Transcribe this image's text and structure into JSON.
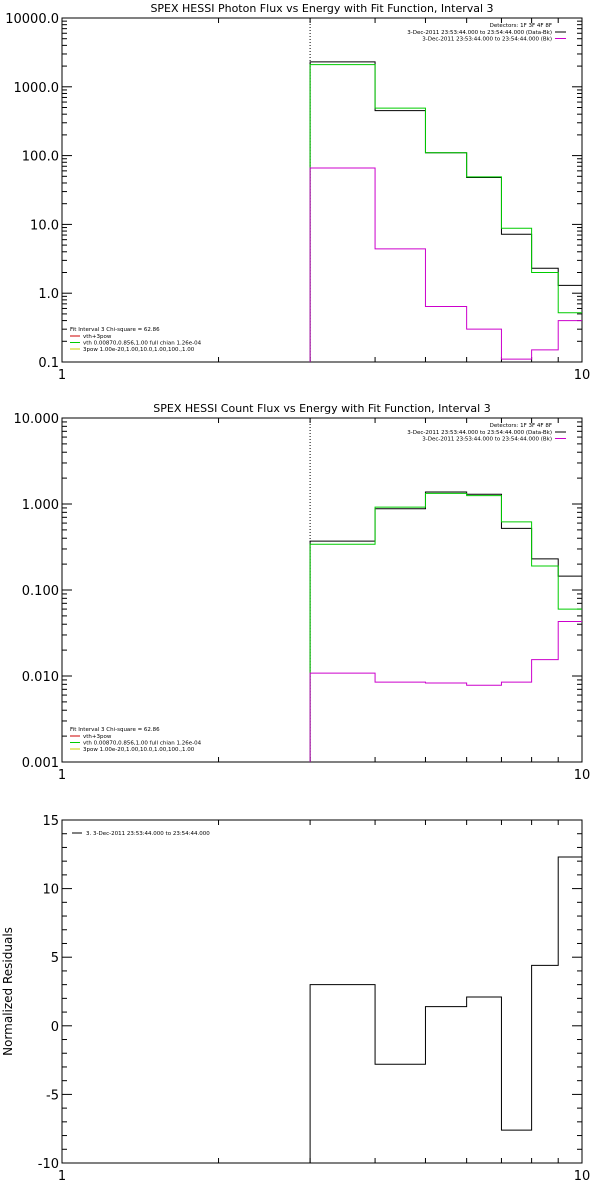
{
  "chart_data": [
    {
      "type": "line",
      "title": "SPEX HESSI Photon Flux vs Energy with Fit Function, Interval 3",
      "xlim": [
        1,
        10
      ],
      "x_scale": "log",
      "ylim": [
        0.1,
        10000
      ],
      "y_scale": "log",
      "x_tick_labels": [
        "1",
        "10"
      ],
      "y_tick_labels": [
        "0.1",
        "1.0",
        "10.0",
        "100.0",
        "1000.0",
        "10000.0"
      ],
      "y_tick_values": [
        0.1,
        1,
        10,
        100,
        1000,
        10000
      ],
      "marker_x": 3,
      "bin_edges": [
        3,
        4,
        5,
        6,
        7,
        8,
        9,
        10
      ],
      "series": [
        {
          "color": "#000000",
          "values": [
            2300,
            450,
            110,
            48,
            7.2,
            2.3,
            1.3
          ]
        },
        {
          "color": "#00cc00",
          "values": [
            2100,
            490,
            110,
            49,
            8.8,
            2.0,
            0.52
          ]
        },
        {
          "color": "#cc00cc",
          "values": [
            66,
            4.4,
            0.64,
            0.3,
            0.11,
            0.15,
            0.4
          ]
        }
      ],
      "legend_top": {
        "header": "Detectors: 1F 3F 4F 8F",
        "entries": [
          {
            "label": "3-Dec-2011 23:53:44.000 to 23:54:44.000 (Data-Bk)",
            "color": "#000000"
          },
          {
            "label": "3-Dec-2011 23:53:44.000 to 23:54:44.000 (Bk)",
            "color": "#cc00cc"
          }
        ]
      },
      "legend_bottom": {
        "header": "Fit Interval 3   Chi-square = 62.86",
        "entries": [
          {
            "label": "vth+3pow",
            "color": "#cc0000"
          },
          {
            "label": "vth 0.00870,0.856,1.00  full chian 1.26e-04",
            "color": "#00cc00"
          },
          {
            "label": "3pow 1.00e-20,1.00,10.0,1.00,100.,1.00",
            "color": "#cccc00"
          }
        ]
      }
    },
    {
      "type": "line",
      "title": "SPEX HESSI Count Flux vs Energy with Fit Function, Interval 3",
      "xlim": [
        1,
        10
      ],
      "x_scale": "log",
      "ylim": [
        0.001,
        10
      ],
      "y_scale": "log",
      "x_tick_labels": [
        "1",
        "10"
      ],
      "y_tick_labels": [
        "0.001",
        "0.010",
        "0.100",
        "1.000",
        "10.000"
      ],
      "y_tick_values": [
        0.001,
        0.01,
        0.1,
        1,
        10
      ],
      "marker_x": 3,
      "bin_edges": [
        3,
        4,
        5,
        6,
        7,
        8,
        9,
        10
      ],
      "series": [
        {
          "color": "#000000",
          "values": [
            0.37,
            0.88,
            1.38,
            1.3,
            0.52,
            0.23,
            0.145
          ]
        },
        {
          "color": "#00cc00",
          "values": [
            0.34,
            0.92,
            1.33,
            1.25,
            0.62,
            0.19,
            0.06
          ]
        },
        {
          "color": "#cc00cc",
          "values": [
            0.0108,
            0.0085,
            0.0083,
            0.0078,
            0.0085,
            0.0155,
            0.043
          ]
        }
      ],
      "legend_top": {
        "header": "Detectors: 1F 3F 4F 8F",
        "entries": [
          {
            "label": "3-Dec-2011 23:53:44.000 to 23:54:44.000 (Data-Bk)",
            "color": "#000000"
          },
          {
            "label": "3-Dec-2011 23:53:44.000 to 23:54:44.000 (Bk)",
            "color": "#cc00cc"
          }
        ]
      },
      "legend_bottom": {
        "header": "Fit Interval 3   Chi-square = 62.86",
        "entries": [
          {
            "label": "vth+3pow",
            "color": "#cc0000"
          },
          {
            "label": "vth 0.00870,0.856,1.00  full chian 1.26e-04",
            "color": "#00cc00"
          },
          {
            "label": "3pow 1.00e-20,1.00,10.0,1.00,100.,1.00",
            "color": "#cccc00"
          }
        ]
      }
    },
    {
      "type": "line",
      "title": "",
      "ylabel": "Normalized Residuals",
      "xlim": [
        1,
        10
      ],
      "x_scale": "log",
      "ylim": [
        -10,
        15
      ],
      "y_scale": "linear",
      "x_tick_labels": [
        "1",
        "10"
      ],
      "y_tick_labels": [
        "-10",
        "-5",
        "0",
        "5",
        "10",
        "15"
      ],
      "y_tick_values": [
        -10,
        -5,
        0,
        5,
        10,
        15
      ],
      "bin_edges": [
        3,
        4,
        5,
        6,
        7,
        8,
        9,
        10
      ],
      "series": [
        {
          "color": "#000000",
          "values": [
            3.0,
            -2.8,
            1.4,
            2.1,
            -7.6,
            4.4,
            12.3
          ]
        }
      ],
      "legend_top": {
        "header": "",
        "entries": [
          {
            "label": "3.  3-Dec-2011 23:53:44.000 to 23:54:44.000",
            "color": "#000000"
          }
        ]
      }
    }
  ]
}
